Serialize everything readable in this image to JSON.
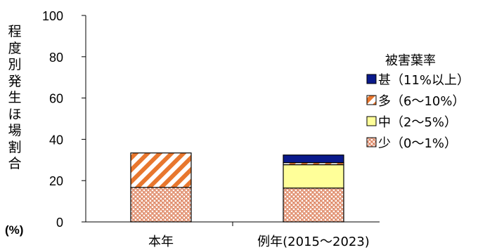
{
  "chart_data": {
    "type": "bar",
    "stacked": true,
    "ylabel": "程度別発生ほ場割合",
    "yunit": "(%)",
    "ylim": [
      0,
      100
    ],
    "yticks": [
      0,
      20,
      40,
      60,
      80,
      100
    ],
    "grid": false,
    "legend_title": "被害葉率",
    "legend_position": "right",
    "categories": [
      "本年",
      "例年(2015～2023)"
    ],
    "series": [
      {
        "name": "少（0～1%）",
        "values": [
          16.7,
          16.4
        ],
        "color": "#e8a58a",
        "pattern": "dots"
      },
      {
        "name": "中（2～5%）",
        "values": [
          0,
          11.3
        ],
        "color": "#ffff99",
        "pattern": "solid"
      },
      {
        "name": "多（6～10%）",
        "values": [
          16.7,
          1.0
        ],
        "color": "#e8772e",
        "pattern": "diagonal"
      },
      {
        "name": "甚（11%以上）",
        "values": [
          0,
          3.7
        ],
        "color": "#0a1a8c",
        "pattern": "solid"
      }
    ]
  }
}
